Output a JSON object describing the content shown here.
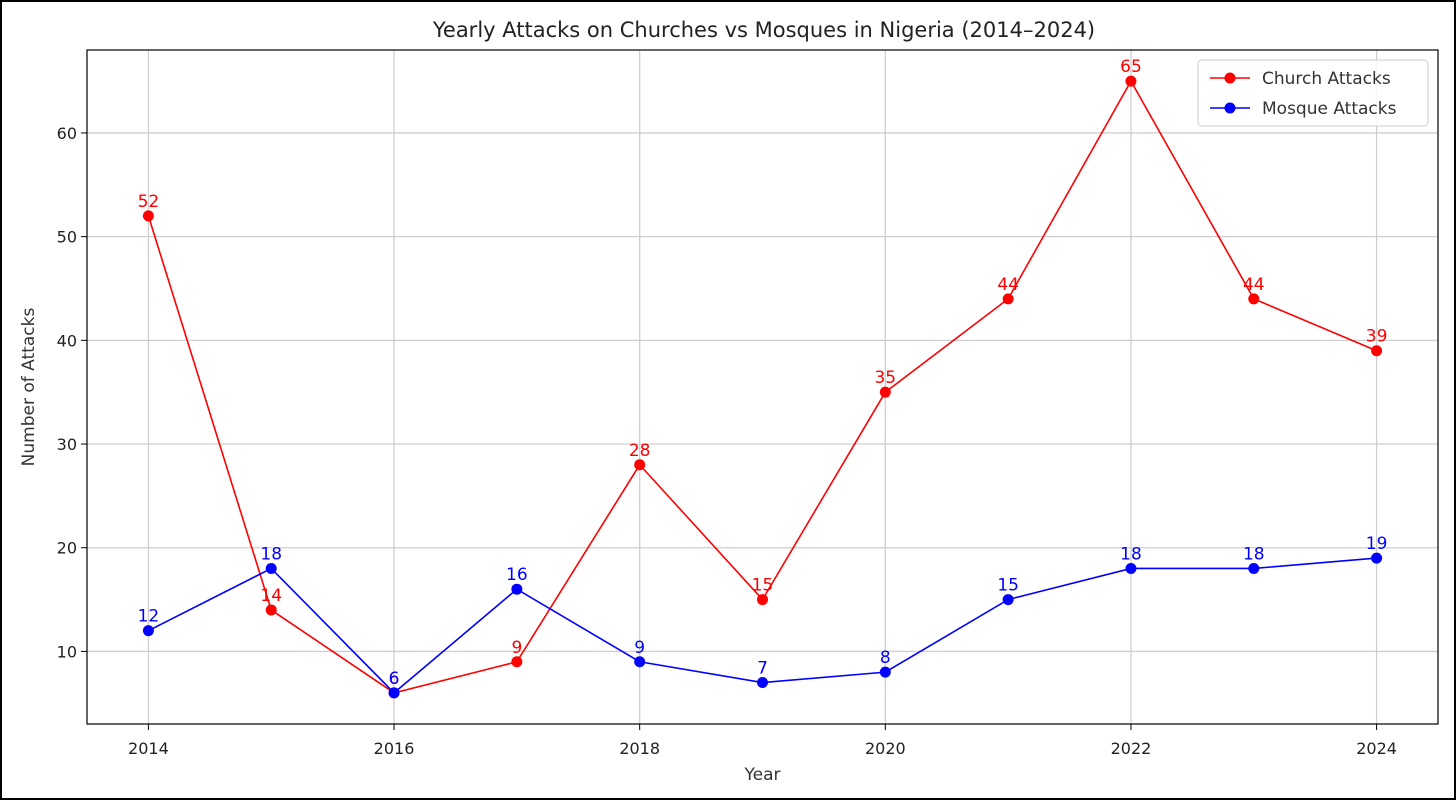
{
  "chart_data": {
    "type": "line",
    "title": "Yearly Attacks on Churches vs Mosques in Nigeria (2014–2024)",
    "xlabel": "Year",
    "ylabel": "Number of Attacks",
    "x": [
      2014,
      2015,
      2016,
      2017,
      2018,
      2019,
      2020,
      2021,
      2022,
      2023,
      2024
    ],
    "x_ticks": [
      "2014",
      "2016",
      "2018",
      "2020",
      "2022",
      "2024"
    ],
    "y_ticks": [
      "10",
      "20",
      "30",
      "40",
      "50",
      "60"
    ],
    "xlim": [
      2013.5,
      2024.5
    ],
    "ylim": [
      3,
      68
    ],
    "grid": true,
    "legend_position": "top-right",
    "series": [
      {
        "name": "Church Attacks",
        "color": "#ff0000",
        "values": [
          52,
          14,
          6,
          9,
          28,
          15,
          35,
          44,
          65,
          44,
          39
        ],
        "labels": [
          "52",
          "14",
          "6",
          "9",
          "28",
          "15",
          "35",
          "44",
          "65",
          "44",
          "39"
        ]
      },
      {
        "name": "Mosque Attacks",
        "color": "#0000ff",
        "values": [
          12,
          18,
          6,
          16,
          9,
          7,
          8,
          15,
          18,
          18,
          19
        ],
        "labels": [
          "12",
          "18",
          "6",
          "16",
          "9",
          "7",
          "8",
          "15",
          "18",
          "18",
          "19"
        ]
      }
    ]
  }
}
